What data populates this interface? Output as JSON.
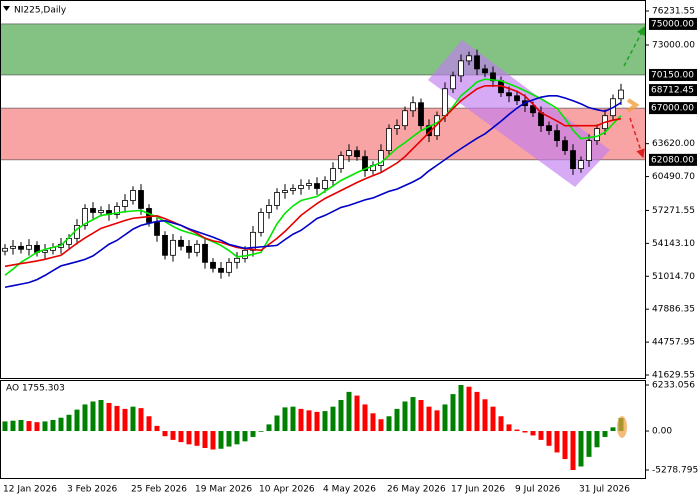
{
  "chart_data": [
    {
      "type": "candlestick",
      "title": "NI225,Daily",
      "categories": [
        "12 Jan 2026",
        null,
        null,
        null,
        null,
        null,
        null,
        null,
        "3 Feb 2026",
        null,
        null,
        null,
        null,
        null,
        null,
        null,
        "25 Feb 2026",
        null,
        null,
        null,
        null,
        null,
        null,
        null,
        "19 Mar 2026",
        null,
        null,
        null,
        null,
        null,
        null,
        null,
        "10 Apr 2026",
        null,
        null,
        null,
        null,
        null,
        null,
        null,
        "4 May 2026",
        null,
        null,
        null,
        null,
        null,
        null,
        null,
        "26 May 2026",
        null,
        null,
        null,
        null,
        null,
        null,
        null,
        "17 Jun 2026",
        null,
        null,
        null,
        null,
        null,
        null,
        null,
        "9 Jul 2026",
        null,
        null,
        null,
        null,
        null,
        null,
        null,
        "31 Jul 2026",
        null,
        null,
        null,
        null,
        null
      ],
      "open": [
        53400,
        53670,
        53860,
        53580,
        53950,
        53290,
        53480,
        53760,
        54050,
        54620,
        55850,
        57460,
        57080,
        57270,
        56890,
        57650,
        58220,
        59170,
        57460,
        56130,
        54900,
        53010,
        54430,
        53860,
        53290,
        54050,
        52340,
        51770,
        51390,
        52340,
        52720,
        53480,
        55190,
        57080,
        57750,
        58980,
        59170,
        59360,
        59640,
        59830,
        59360,
        60120,
        61250,
        62490,
        62960,
        62390,
        61060,
        61540,
        62960,
        65050,
        65330,
        66750,
        67510,
        65330,
        64380,
        66280,
        68840,
        70070,
        71490,
        71970,
        70730,
        70350,
        69600,
        68460,
        68170,
        67700,
        67230,
        66560,
        65330,
        64860,
        63910,
        62960,
        61250,
        62010,
        63910,
        65050,
        66280,
        67890
      ],
      "high": [
        54070,
        54460,
        54260,
        54550,
        54350,
        54080,
        54160,
        54650,
        55020,
        56450,
        57860,
        58060,
        57670,
        57870,
        58050,
        58820,
        59570,
        59770,
        57860,
        56730,
        55300,
        55030,
        54830,
        54460,
        54450,
        54650,
        52740,
        52370,
        52740,
        53320,
        53880,
        55790,
        57480,
        58350,
        59380,
        59770,
        59760,
        60240,
        60230,
        60430,
        60520,
        61850,
        62890,
        63560,
        63360,
        62990,
        61940,
        63560,
        65450,
        65930,
        67150,
        68110,
        67910,
        65930,
        66680,
        69440,
        70470,
        72090,
        72370,
        72570,
        71130,
        70950,
        70000,
        69060,
        68570,
        68300,
        67630,
        67160,
        65730,
        65460,
        64310,
        63560,
        62410,
        64510,
        65450,
        66880,
        68290,
        69310
      ],
      "low": [
        53000,
        53070,
        53180,
        52980,
        52890,
        52690,
        53080,
        53160,
        53650,
        54020,
        55450,
        56480,
        56680,
        56290,
        56490,
        57050,
        57820,
        56860,
        55730,
        54300,
        52610,
        52410,
        53460,
        52690,
        52890,
        51740,
        51370,
        50790,
        50990,
        51740,
        52320,
        52880,
        54790,
        56480,
        57350,
        58380,
        58770,
        58760,
        59240,
        58760,
        58960,
        59520,
        60850,
        61890,
        61990,
        60460,
        60660,
        60940,
        62560,
        64450,
        64930,
        66150,
        64930,
        63780,
        63980,
        65680,
        68440,
        69470,
        71090,
        70130,
        69950,
        69000,
        68060,
        67570,
        67300,
        66630,
        66160,
        64730,
        64460,
        63310,
        62560,
        60650,
        60850,
        61410,
        63510,
        64450,
        65880,
        67290
      ],
      "close": [
        53670,
        53860,
        53580,
        53950,
        53290,
        53480,
        53760,
        54050,
        54620,
        55850,
        57460,
        57080,
        57270,
        56890,
        57650,
        58220,
        59170,
        57460,
        56130,
        54900,
        53010,
        54430,
        53860,
        53290,
        54050,
        52340,
        51770,
        51390,
        52340,
        52720,
        53480,
        55190,
        57080,
        57750,
        58980,
        59170,
        59360,
        59640,
        59830,
        59360,
        60120,
        61250,
        62490,
        62960,
        62390,
        61060,
        61540,
        62960,
        65050,
        65330,
        66750,
        67510,
        65330,
        64380,
        66280,
        68840,
        70070,
        71490,
        71970,
        70730,
        70350,
        69600,
        68460,
        68170,
        67700,
        67230,
        66560,
        65330,
        64860,
        63910,
        62960,
        61250,
        62010,
        63910,
        65050,
        66280,
        67890,
        68712.45
      ],
      "up_color": "#ffffff",
      "down_color": "#000000",
      "candle_border": "#000000",
      "series": [
        {
          "color": "#00e600",
          "values": [
            51110,
            51700,
            52340,
            52800,
            53300,
            53570,
            53760,
            53950,
            54700,
            55500,
            56000,
            56400,
            56800,
            56920,
            57030,
            57150,
            57220,
            57270,
            56960,
            56660,
            56200,
            55750,
            55390,
            55150,
            54930,
            54600,
            54300,
            53950,
            53460,
            52870,
            52950,
            53100,
            53290,
            54600,
            56000,
            57000,
            57700,
            58220,
            58410,
            58600,
            59100,
            59600,
            60120,
            60500,
            60880,
            61210,
            61520,
            61820,
            62500,
            63200,
            63720,
            64300,
            64860,
            65240,
            65610,
            66180,
            67140,
            68170,
            68800,
            69480,
            69750,
            69670,
            69600,
            69300,
            69000,
            68650,
            68270,
            67890,
            67430,
            66980,
            66000,
            64900,
            64100,
            64200,
            64320,
            64700,
            65500,
            66280
          ]
        },
        {
          "color": "#e60000",
          "values": [
            51960,
            52090,
            52220,
            52340,
            52470,
            52630,
            52820,
            53010,
            53580,
            54150,
            54660,
            55110,
            55570,
            55820,
            56070,
            56320,
            56530,
            56610,
            56690,
            56760,
            56500,
            56180,
            55850,
            55470,
            55090,
            54640,
            54380,
            54240,
            53990,
            53750,
            53640,
            53560,
            53480,
            54050,
            54620,
            55280,
            56040,
            56800,
            57370,
            57930,
            58410,
            58790,
            59170,
            59550,
            59930,
            60270,
            60580,
            60880,
            61330,
            61780,
            62390,
            63150,
            63910,
            64670,
            65420,
            66180,
            66940,
            67700,
            68270,
            68830,
            69120,
            69120,
            69120,
            68860,
            68590,
            68140,
            67380,
            66560,
            66170,
            65770,
            65330,
            65330,
            65330,
            65330,
            65330,
            65660,
            65850,
            65990
          ]
        },
        {
          "color": "#0000c8",
          "values": [
            49970,
            50120,
            50270,
            50420,
            50700,
            51100,
            51560,
            52000,
            52200,
            52400,
            52620,
            52950,
            53500,
            54060,
            54430,
            54960,
            55500,
            55850,
            56050,
            56230,
            56300,
            56080,
            55850,
            55520,
            55260,
            55000,
            54740,
            54430,
            54050,
            53860,
            53670,
            53740,
            53810,
            53880,
            53950,
            54500,
            55010,
            55380,
            55940,
            56510,
            56800,
            57180,
            57560,
            57750,
            58020,
            58280,
            58460,
            58780,
            59090,
            59300,
            59640,
            59990,
            60400,
            61040,
            61570,
            62100,
            62640,
            63150,
            63640,
            64130,
            64560,
            65150,
            65750,
            66400,
            67000,
            67510,
            67780,
            68040,
            68170,
            68170,
            67960,
            67700,
            67400,
            67040,
            66850,
            66700,
            67050,
            67510
          ]
        }
      ],
      "ylim": [
        41346,
        77180
      ],
      "yticks": [
        76231.55,
        {
          "value": 73000,
          "label": "73000.00"
        },
        {
          "value": 63620,
          "label": "63620.00"
        },
        {
          "value": 60490.7,
          "label": "60490.70"
        },
        57271.55,
        {
          "value": 54143.1,
          "label": "54143.10"
        },
        {
          "value": 51014.7,
          "label": "51014.70"
        },
        47886.35,
        44757.95,
        41629.55
      ],
      "zones": [
        {
          "low": {
            "value": 70150,
            "label": "70150.00"
          },
          "high": {
            "value": 75000,
            "label": "75000.00"
          },
          "color": "#84c284"
        },
        {
          "low": {
            "value": 62080,
            "label": "62080.00"
          },
          "high": {
            "value": 67000,
            "label": "67000.00"
          },
          "color": "#f8a4a4"
        }
      ],
      "last_price": 68712.45
    },
    {
      "type": "bar",
      "title": "AO 1755.303",
      "values": [
        1300,
        1400,
        1500,
        1350,
        1200,
        1300,
        1500,
        1800,
        2200,
        2900,
        3600,
        4000,
        4200,
        3800,
        3400,
        3000,
        3300,
        3100,
        2000,
        700,
        -700,
        -1200,
        -1500,
        -1800,
        -2000,
        -2300,
        -2500,
        -2400,
        -2100,
        -1800,
        -1400,
        -800,
        -100,
        900,
        2100,
        3200,
        3300,
        3000,
        2800,
        2600,
        2700,
        3300,
        4200,
        5300,
        4800,
        3600,
        2400,
        1600,
        2000,
        3000,
        4000,
        4600,
        4200,
        3300,
        2800,
        3600,
        5000,
        6233.056,
        6000,
        5300,
        4300,
        3300,
        2000,
        900,
        200,
        -200,
        -600,
        -1200,
        -2000,
        -2900,
        -3800,
        -5278.795,
        -4800,
        -3500,
        -2200,
        -800,
        500,
        1755.303
      ],
      "up_color": "#008000",
      "down_color": "#ff0000",
      "ylim": [
        -6360,
        6910
      ],
      "yticks": [
        6233.056,
        {
          "value": 0,
          "label": "0.00"
        },
        -5278.795
      ]
    }
  ]
}
